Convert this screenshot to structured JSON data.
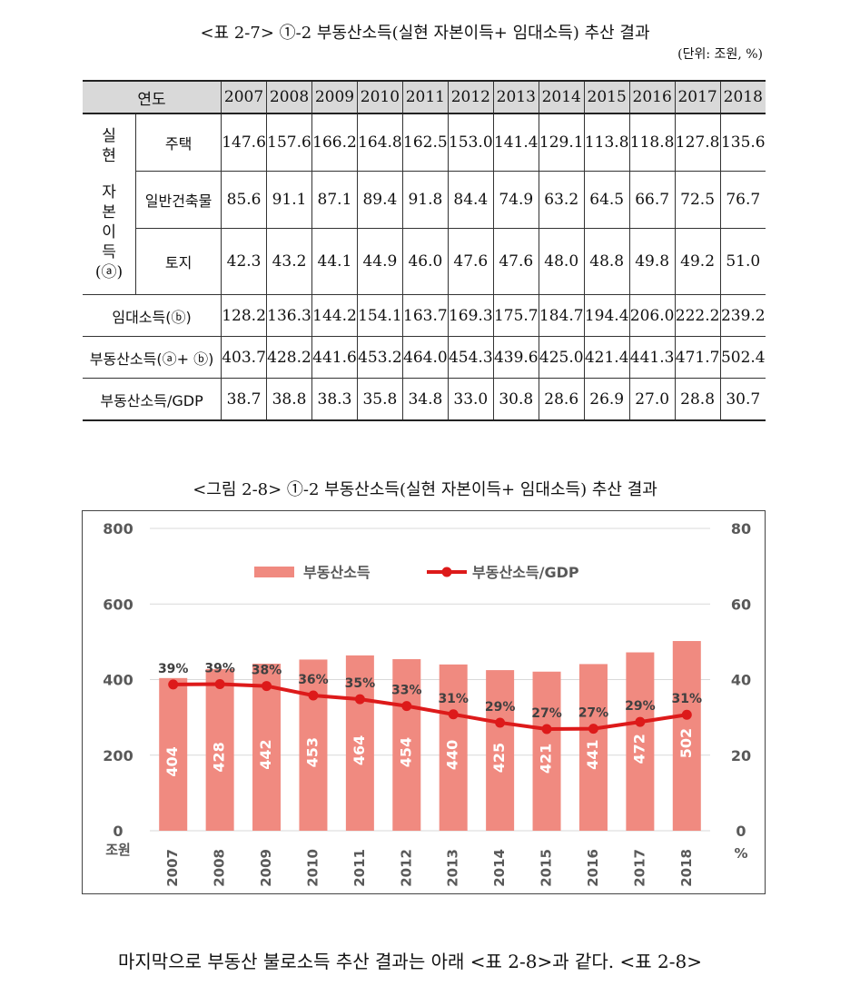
{
  "table": {
    "caption": "<표 2-7> ①-2 부동산소득(실현 자본이득+ 임대소득) 추산 결과",
    "unit": "(단위: 조원, %)",
    "header": {
      "label": "연도",
      "years": [
        "2007",
        "2008",
        "2009",
        "2010",
        "2011",
        "2012",
        "2013",
        "2014",
        "2015",
        "2016",
        "2017",
        "2018"
      ]
    },
    "group_label_chars": [
      "실",
      "현",
      "자",
      "본",
      "이",
      "득",
      "(ⓐ)"
    ],
    "rows": {
      "house": {
        "label": "주택",
        "values": [
          "147.6",
          "157.6",
          "166.2",
          "164.8",
          "162.5",
          "153.0",
          "141.4",
          "129.1",
          "113.8",
          "118.8",
          "127.8",
          "135.6"
        ]
      },
      "building": {
        "label": "일반건축물",
        "values": [
          "85.6",
          "91.1",
          "87.1",
          "89.4",
          "91.8",
          "84.4",
          "74.9",
          "63.2",
          "64.5",
          "66.7",
          "72.5",
          "76.7"
        ]
      },
      "land": {
        "label": "토지",
        "values": [
          "42.3",
          "43.2",
          "44.1",
          "44.9",
          "46.0",
          "47.6",
          "47.6",
          "48.0",
          "48.8",
          "49.8",
          "49.2",
          "51.0"
        ]
      },
      "rent": {
        "label": "임대소득(ⓑ)",
        "values": [
          "128.2",
          "136.3",
          "144.2",
          "154.1",
          "163.7",
          "169.3",
          "175.7",
          "184.7",
          "194.4",
          "206.0",
          "222.2",
          "239.2"
        ]
      },
      "sum": {
        "label": "부동산소득(ⓐ+ ⓑ)",
        "values": [
          "403.7",
          "428.2",
          "441.6",
          "453.2",
          "464.0",
          "454.3",
          "439.6",
          "425.0",
          "421.4",
          "441.3",
          "471.7",
          "502.4"
        ]
      },
      "gdp": {
        "label": "부동산소득/GDP",
        "values": [
          "38.7",
          "38.8",
          "38.3",
          "35.8",
          "34.8",
          "33.0",
          "30.8",
          "28.6",
          "26.9",
          "27.0",
          "28.8",
          "30.7"
        ]
      }
    }
  },
  "figure": {
    "caption": "<그림 2-8> ①-2 부동산소득(실현 자본이득+ 임대소득) 추산 결과"
  },
  "chart_data": {
    "type": "bar",
    "categories": [
      "2007",
      "2008",
      "2009",
      "2010",
      "2011",
      "2012",
      "2013",
      "2014",
      "2015",
      "2016",
      "2017",
      "2018"
    ],
    "series": [
      {
        "name": "부동산소득",
        "type": "bar",
        "axis": "left",
        "color": "#f08a80",
        "values": [
          404,
          428,
          442,
          453,
          464,
          454,
          440,
          425,
          421,
          441,
          472,
          502
        ],
        "labels": [
          "404",
          "428",
          "442",
          "453",
          "464",
          "454",
          "440",
          "425",
          "421",
          "441",
          "472",
          "502"
        ]
      },
      {
        "name": "부동산소득/GDP",
        "type": "line",
        "axis": "right",
        "color": "#dd1a1a",
        "values": [
          38.7,
          38.8,
          38.3,
          35.8,
          34.8,
          33.0,
          30.8,
          28.6,
          26.9,
          27.0,
          28.8,
          30.7
        ],
        "labels": [
          "39%",
          "39%",
          "38%",
          "36%",
          "35%",
          "33%",
          "31%",
          "29%",
          "27%",
          "27%",
          "29%",
          "31%"
        ]
      }
    ],
    "y_left": {
      "range": [
        0,
        800
      ],
      "ticks": [
        "0",
        "200",
        "400",
        "600",
        "800"
      ],
      "unit": "조원"
    },
    "y_right": {
      "range": [
        0,
        80
      ],
      "ticks": [
        "0",
        "20",
        "40",
        "60",
        "80"
      ],
      "unit": "%"
    },
    "grid": true,
    "legend": "top-center"
  },
  "bottom_text": "마지막으로 부동산 불로소득 추산 결과는 아래 <표 2-8>과 같다. <표 2-8>"
}
